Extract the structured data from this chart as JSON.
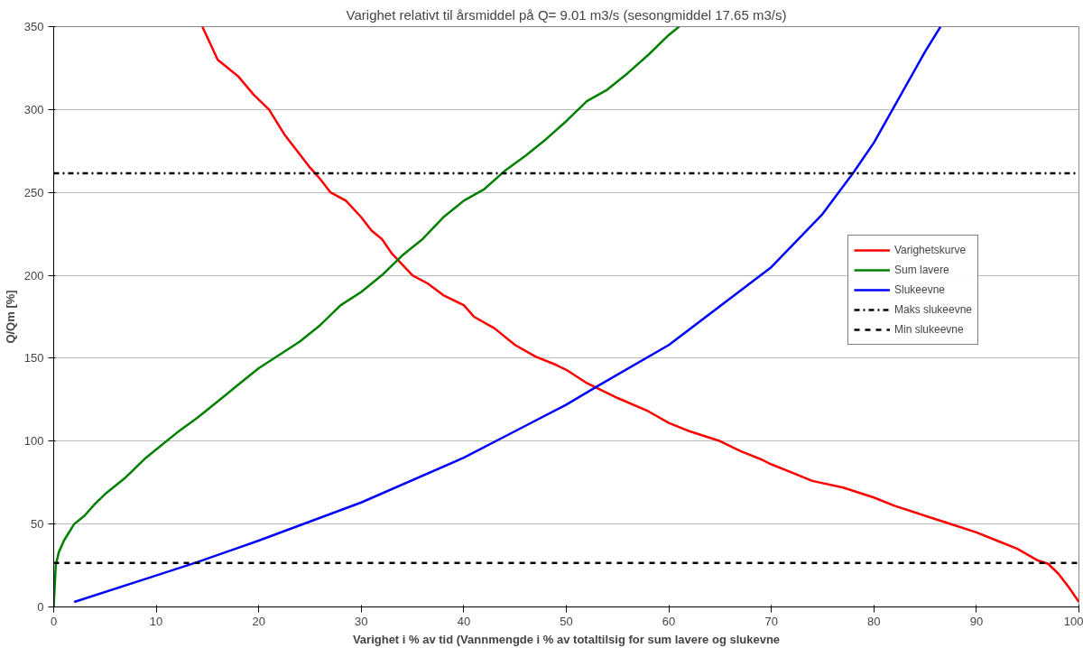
{
  "chart_data": {
    "type": "line",
    "title": "Varighet relativt til årsmiddel på Q= 9.01 m3/s (sesongmiddel 17.65 m3/s)",
    "xlabel": "Varighet i % av tid (Vannmengde i % av totaltilsig for sum lavere og slukevne",
    "ylabel": "Q/Qm [%]",
    "xlim": [
      0,
      100
    ],
    "ylim": [
      0,
      350
    ],
    "xticks": [
      0,
      10,
      20,
      30,
      40,
      50,
      60,
      70,
      80,
      90,
      100
    ],
    "yticks": [
      0,
      50,
      100,
      150,
      200,
      250,
      300,
      350
    ],
    "grid": "y",
    "legend": "right",
    "line_style": "solid",
    "marker": "none",
    "series": [
      {
        "name": "Varighetskurve",
        "color": "#ff0000",
        "x": [
          14.5,
          16,
          18,
          19.5,
          21,
          22.5,
          24,
          25,
          26,
          27,
          28.5,
          30,
          31,
          32,
          33,
          35,
          36.5,
          38,
          40,
          41,
          43,
          45,
          47,
          49,
          50,
          52,
          55,
          58,
          60,
          62,
          65,
          67,
          69,
          70,
          72,
          74,
          77,
          80,
          82,
          85,
          88,
          90,
          92,
          94,
          96,
          97,
          98,
          99,
          100
        ],
        "values": [
          350,
          330,
          320,
          309,
          300,
          285,
          273,
          265,
          258,
          250,
          245,
          235,
          227,
          222,
          213,
          200,
          195,
          188,
          182,
          175,
          168,
          158,
          151,
          146,
          143,
          135,
          126,
          118,
          111,
          106,
          100,
          94,
          89,
          86,
          81,
          76,
          72,
          66,
          61,
          55,
          49,
          45,
          40,
          35,
          28,
          26,
          20,
          12,
          3
        ]
      },
      {
        "name": "Sum lavere",
        "color": "#008000",
        "x": [
          0,
          0.2,
          0.5,
          1,
          2,
          3,
          4,
          5,
          7,
          9,
          10,
          12,
          14,
          16,
          18,
          20,
          22,
          24,
          26,
          28,
          30,
          32,
          34,
          36,
          38,
          40,
          42,
          44,
          46,
          48,
          50,
          52,
          54,
          56,
          58,
          60,
          61
        ],
        "values": [
          0,
          25,
          33,
          40,
          50,
          55,
          62,
          68,
          78,
          90,
          95,
          105,
          114,
          124,
          134,
          144,
          152,
          160,
          170,
          182,
          190,
          200,
          212,
          222,
          235,
          245,
          252,
          263,
          272,
          282,
          293,
          305,
          312,
          322,
          333,
          345,
          350
        ]
      },
      {
        "name": "Slukeevne",
        "color": "#0000ff",
        "x": [
          2,
          10,
          14,
          20,
          30,
          40,
          45,
          50,
          53,
          60,
          70,
          75,
          78,
          80,
          85,
          86.5
        ],
        "values": [
          3,
          19,
          27,
          40,
          63,
          90,
          106,
          122,
          133,
          158,
          205,
          237,
          262,
          280,
          335,
          350
        ]
      }
    ],
    "ref_lines": [
      {
        "axis": "y",
        "value": 261.5,
        "label": "Maks slukeevne",
        "color": "#000000",
        "line_style": "dashdot"
      },
      {
        "axis": "y",
        "value": 26.5,
        "label": "Min slukeevne",
        "color": "#000000",
        "line_style": "dashed"
      }
    ]
  }
}
